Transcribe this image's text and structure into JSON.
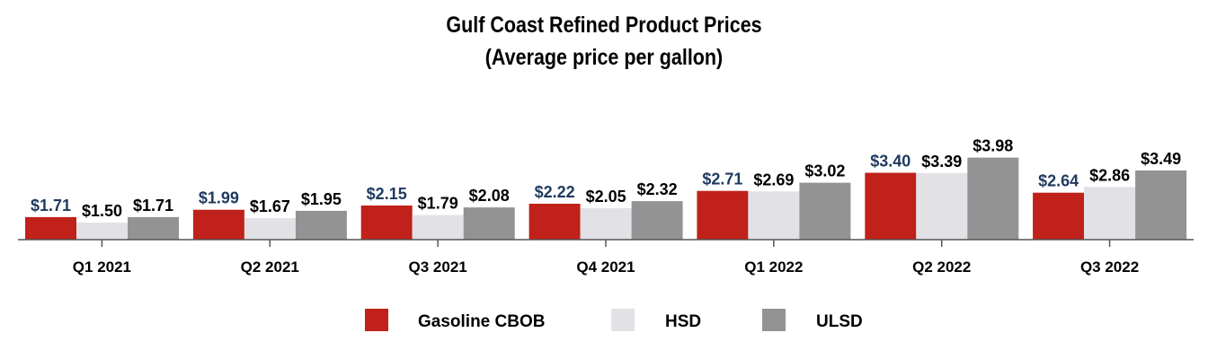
{
  "chart_data": {
    "type": "bar",
    "title": "Gulf Coast Refined Product Prices",
    "subtitle": "(Average price per gallon)",
    "xlabel": "",
    "ylabel": "",
    "ylim": [
      0,
      4.0
    ],
    "grid": false,
    "legend_position": "bottom-center",
    "categories": [
      "Q1 2021",
      "Q2 2021",
      "Q3 2021",
      "Q4 2021",
      "Q1 2022",
      "Q2 2022",
      "Q3 2022"
    ],
    "series": [
      {
        "name": "Gasoline CBOB",
        "color": "#C0211A",
        "label_color": "#1F3A5F",
        "values": [
          1.71,
          1.99,
          2.15,
          2.22,
          2.71,
          3.4,
          2.64
        ],
        "labels": [
          "$1.71",
          "$1.99",
          "$2.15",
          "$2.22",
          "$2.71",
          "$3.40",
          "$2.64"
        ]
      },
      {
        "name": "HSD",
        "color": "#E2E2E6",
        "label_color": "#000000",
        "values": [
          1.5,
          1.67,
          1.79,
          2.05,
          2.69,
          3.39,
          2.86
        ],
        "labels": [
          "$1.50",
          "$1.67",
          "$1.79",
          "$2.05",
          "$2.69",
          "$3.39",
          "$2.86"
        ]
      },
      {
        "name": "ULSD",
        "color": "#939393",
        "label_color": "#000000",
        "values": [
          1.71,
          1.95,
          2.08,
          2.32,
          3.02,
          3.98,
          3.49
        ],
        "labels": [
          "$1.71",
          "$1.95",
          "$2.08",
          "$2.32",
          "$3.02",
          "$3.98",
          "$3.49"
        ]
      }
    ]
  }
}
